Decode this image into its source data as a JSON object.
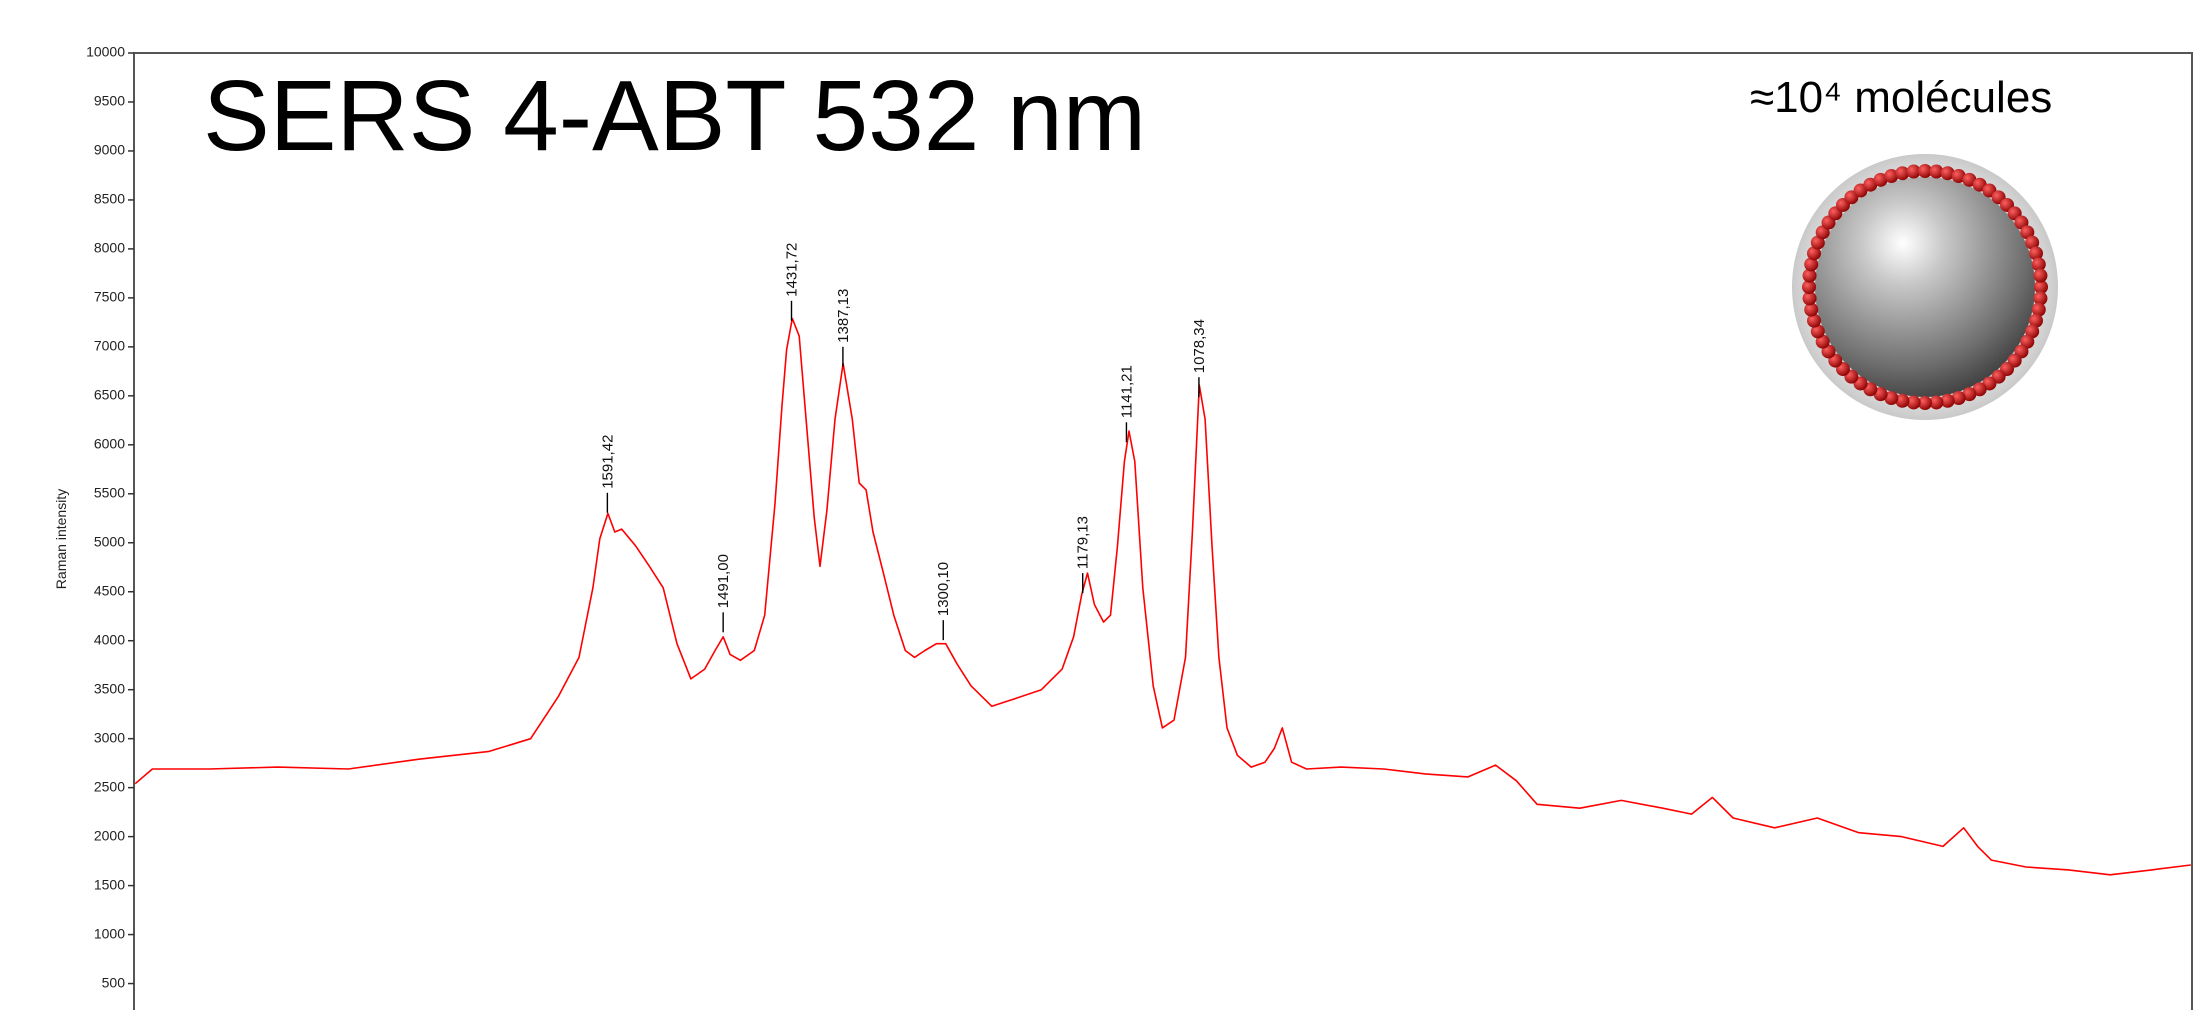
{
  "chart_data": {
    "type": "line",
    "title": "SERS 4-ABT 532 nm",
    "annotation": "≈10⁴ molécules",
    "ylabel": "Raman intensity",
    "color": "#ff0000",
    "xlim": [
      2002,
      217
    ],
    "ylim": [
      230,
      10000
    ],
    "yticks": [
      500,
      1000,
      1500,
      2000,
      2500,
      3000,
      3500,
      4000,
      4500,
      5000,
      5500,
      6000,
      6500,
      7000,
      7500,
      8000,
      8500,
      9000,
      9500,
      10000
    ],
    "x": [
      2001,
      1986,
      1937,
      1877,
      1816,
      1755,
      1694,
      1658,
      1634,
      1616,
      1604,
      1598,
      1591,
      1585,
      1579,
      1567,
      1555,
      1543,
      1531,
      1519,
      1507,
      1498,
      1491,
      1485,
      1476,
      1464,
      1455,
      1446,
      1440,
      1436,
      1431,
      1425,
      1418,
      1412,
      1407,
      1401,
      1394,
      1387,
      1379,
      1373,
      1367,
      1361,
      1352,
      1343,
      1333,
      1325,
      1316,
      1306,
      1298,
      1288,
      1276,
      1258,
      1240,
      1215,
      1197,
      1187,
      1180,
      1175,
      1169,
      1161,
      1155,
      1149,
      1143,
      1139,
      1134,
      1127,
      1118,
      1110,
      1100,
      1090,
      1084,
      1078,
      1073,
      1067,
      1061,
      1054,
      1045,
      1033,
      1021,
      1013,
      1006,
      998,
      985,
      955,
      918,
      882,
      845,
      821,
      803,
      785,
      748,
      712,
      676,
      651,
      633,
      615,
      579,
      542,
      506,
      469,
      433,
      415,
      403,
      391,
      361,
      324,
      288,
      252,
      218
    ],
    "values": [
      2540,
      2690,
      2690,
      2710,
      2690,
      2790,
      2870,
      3000,
      3430,
      3830,
      4540,
      5040,
      5300,
      5110,
      5140,
      4970,
      4760,
      4540,
      3970,
      3610,
      3710,
      3900,
      4040,
      3860,
      3800,
      3900,
      4260,
      5400,
      6400,
      6970,
      7290,
      7110,
      6110,
      5260,
      4760,
      5330,
      6260,
      6830,
      6260,
      5610,
      5540,
      5110,
      4690,
      4260,
      3900,
      3830,
      3900,
      3970,
      3970,
      3760,
      3540,
      3330,
      3400,
      3500,
      3710,
      4040,
      4470,
      4690,
      4370,
      4190,
      4260,
      4970,
      5830,
      6140,
      5830,
      4540,
      3540,
      3110,
      3190,
      3830,
      5110,
      6610,
      6260,
      4970,
      3830,
      3110,
      2830,
      2710,
      2760,
      2900,
      3110,
      2760,
      2690,
      2710,
      2690,
      2640,
      2610,
      2730,
      2570,
      2330,
      2290,
      2370,
      2290,
      2230,
      2400,
      2190,
      2090,
      2190,
      2040,
      2000,
      1900,
      2090,
      1900,
      1760,
      1690,
      1660,
      1610,
      1660,
      1710
    ],
    "peaks": [
      {
        "value": 1591.42,
        "label": "1591,42",
        "y": 5510
      },
      {
        "value": 1491.0,
        "label": "1491,00",
        "y": 4290
      },
      {
        "value": 1431.72,
        "label": "1431,72",
        "y": 7470
      },
      {
        "value": 1387.13,
        "label": "1387,13",
        "y": 7000
      },
      {
        "value": 1300.1,
        "label": "1300,10",
        "y": 4210
      },
      {
        "value": 1179.13,
        "label": "1179,13",
        "y": 4690
      },
      {
        "value": 1141.21,
        "label": "1141,21",
        "y": 6230
      },
      {
        "value": 1078.34,
        "label": "1078,34",
        "y": 6690
      }
    ]
  }
}
